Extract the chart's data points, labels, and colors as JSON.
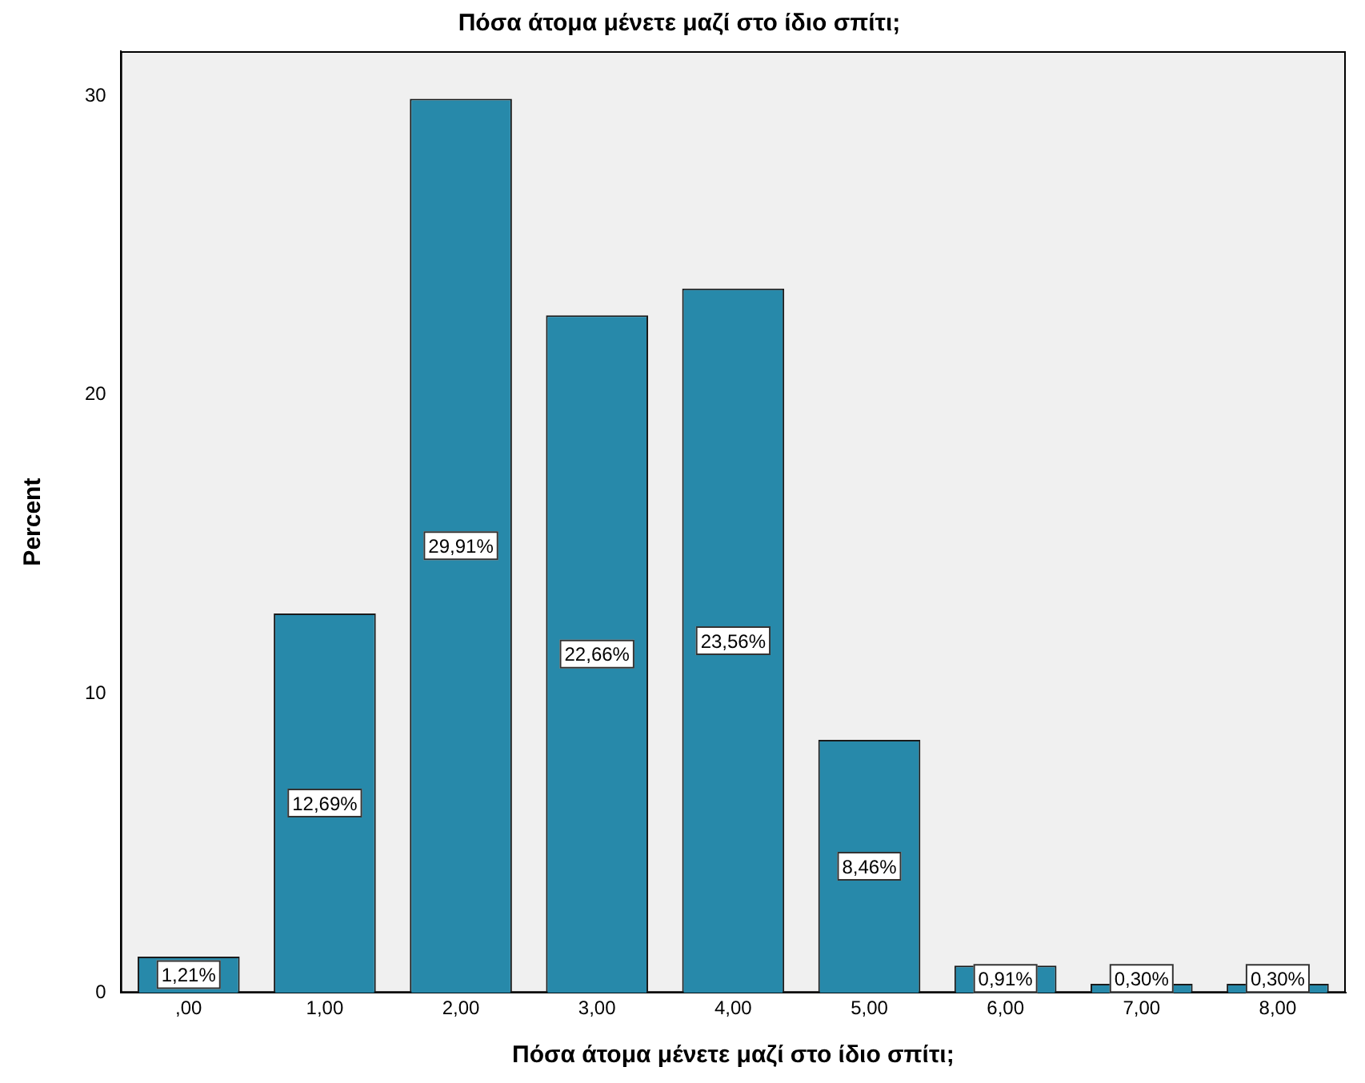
{
  "chart_data": {
    "type": "bar",
    "title": "Πόσα άτομα μένετε μαζί στο ίδιο σπίτι;",
    "xlabel": "Πόσα άτομα μένετε μαζί στο ίδιο σπίτι;",
    "ylabel": "Percent",
    "categories": [
      ",00",
      "1,00",
      "2,00",
      "3,00",
      "4,00",
      "5,00",
      "6,00",
      "7,00",
      "8,00"
    ],
    "values": [
      1.21,
      12.69,
      29.91,
      22.66,
      23.56,
      8.46,
      0.91,
      0.3,
      0.3
    ],
    "value_labels": [
      "1,21%",
      "12,69%",
      "29,91%",
      "22,66%",
      "23,56%",
      "8,46%",
      "0,91%",
      "0,30%",
      "0,30%"
    ],
    "color": "#2789aa",
    "ylim": [
      0,
      31.5
    ],
    "yticks": [
      0,
      10,
      20,
      30
    ],
    "grid": false,
    "legend": false
  }
}
